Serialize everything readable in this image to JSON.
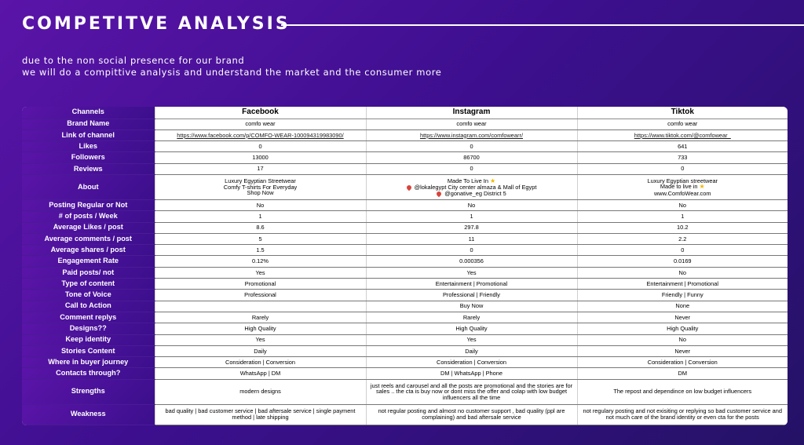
{
  "header": {
    "title": "COMPETITVE ANALYSIS",
    "subtitle_line1": "due to the non social presence for our brand",
    "subtitle_line2": "we will do a compittive analysis and understand the market and the consumer more"
  },
  "table": {
    "columns": [
      "Channels",
      "Facebook",
      "Instagram",
      "Tiktok"
    ],
    "rows": {
      "brand_name": {
        "label": "Brand Name",
        "facebook": "comfo wear",
        "instagram": "comfo wear",
        "tiktok": "comfo wear"
      },
      "link": {
        "label": "Link of channel",
        "facebook": "https://www.facebook.com/p/COMFO-WEAR-100094319983090/",
        "instagram": "https://www.instagram.com/comfowearr/",
        "tiktok": "https://www.tiktok.com/@comfowear_"
      },
      "likes": {
        "label": "Likes",
        "facebook": "0",
        "instagram": "0",
        "tiktok": "641"
      },
      "followers": {
        "label": "Followers",
        "facebook": "13000",
        "instagram": "86700",
        "tiktok": "733"
      },
      "reviews": {
        "label": "Reviews",
        "facebook": "17",
        "instagram": "0",
        "tiktok": "0"
      },
      "about": {
        "label": "About",
        "facebook": [
          "Luxury Egyptian Streetwear",
          "Comfy T-shirts For Everyday",
          "Shop Now"
        ],
        "instagram": [
          "Made To Live In",
          "@lokalegypt City center almaza & Mall of Egypt",
          "@gonative_eg District 5"
        ],
        "tiktok": [
          "Luxury Egyptian streetwear",
          "Made to live in",
          "www.ComfoWear.com"
        ]
      },
      "posting_regular": {
        "label": "Posting Regular or Not",
        "facebook": "No",
        "instagram": "No",
        "tiktok": "No"
      },
      "posts_week": {
        "label": "# of posts / Week",
        "facebook": "1",
        "instagram": "1",
        "tiktok": "1"
      },
      "avg_likes": {
        "label": "Average Likes / post",
        "facebook": "8.6",
        "instagram": "297.8",
        "tiktok": "10.2"
      },
      "avg_comments": {
        "label": "Average comments / post",
        "facebook": "5",
        "instagram": "11",
        "tiktok": "2.2"
      },
      "avg_shares": {
        "label": "Average shares / post",
        "facebook": "1.5",
        "instagram": "0",
        "tiktok": "0"
      },
      "engagement": {
        "label": "Engagement Rate",
        "facebook": "0.12%",
        "instagram": "0.000356",
        "tiktok": "0.0169"
      },
      "paid": {
        "label": "Paid posts/ not",
        "facebook": "Yes",
        "instagram": "Yes",
        "tiktok": "No"
      },
      "content_type": {
        "label": "Type of content",
        "facebook": "Promotional",
        "instagram": "Entertainment | Promotional",
        "tiktok": "Entertainment | Promotional"
      },
      "tone": {
        "label": "Tone of Voice",
        "facebook": "Professional",
        "instagram": "Professional | Friendly",
        "tiktok": "Friendly | Funny"
      },
      "cta": {
        "label": "Call to Action",
        "facebook": "",
        "instagram": "Buy Now",
        "tiktok": "None"
      },
      "comment_replys": {
        "label": "Comment replys",
        "facebook": "Rarely",
        "instagram": "Rarely",
        "tiktok": "Never"
      },
      "designs": {
        "label": "Designs??",
        "facebook": "High Quality",
        "instagram": "High Quality",
        "tiktok": "High Quality"
      },
      "identity": {
        "label": "Keep identity",
        "facebook": "Yes",
        "instagram": "Yes",
        "tiktok": "No"
      },
      "stories": {
        "label": "Stories Content",
        "facebook": "Daily",
        "instagram": "Daily",
        "tiktok": "Never"
      },
      "journey": {
        "label": "Where in buyer journey",
        "facebook": "Consideration | Conversion",
        "instagram": "Consideration | Conversion",
        "tiktok": "Consideration | Conversion"
      },
      "contacts": {
        "label": "Contacts through?",
        "facebook": "WhatsApp | DM",
        "instagram": "DM | WhatsApp | Phone",
        "tiktok": "DM"
      },
      "strengths": {
        "label": "Strengths",
        "facebook": "modern designs",
        "instagram": "just reels and carousel and all the posts are promotional and the stories are for sales .. the cta is buy now or dont miss the offer and colap with  low budget influencers all the time",
        "tiktok": "The repost and dependince on low budget influencers"
      },
      "weakness": {
        "label": "Weakness",
        "facebook": "bad quality | bad customer service | bad aftersale service | single payment method | late shipping",
        "instagram": "not regular posting and almost no customer support , bad quality (ppl are complaining) and bad aftersale service",
        "tiktok": "not regulary posting and not exisiting or replying so bad customer service and not much care of the brand identity or even cta for the posts"
      }
    }
  }
}
